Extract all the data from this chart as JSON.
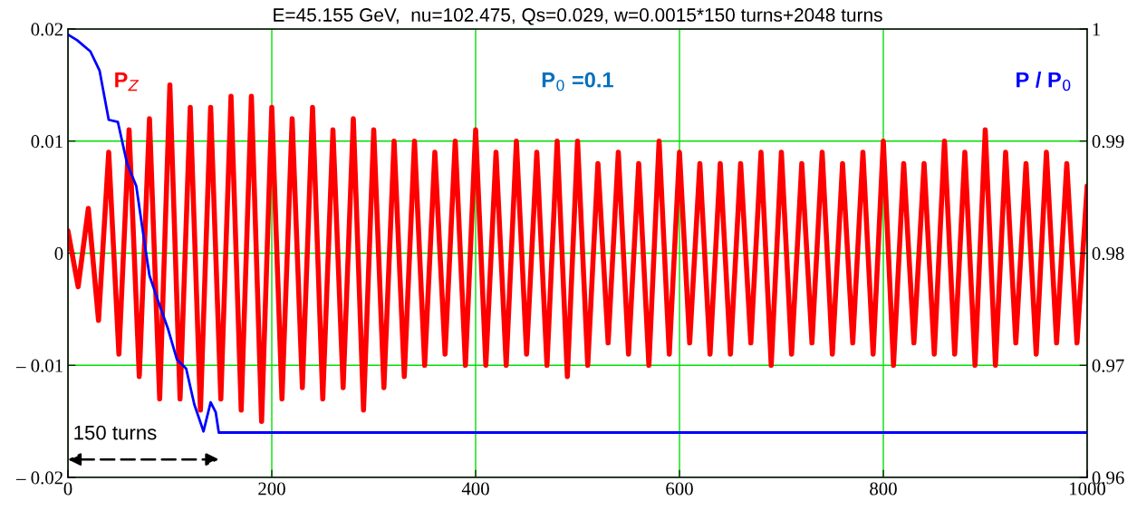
{
  "chart_data": {
    "type": "line",
    "title": "E=45.155 GeV,  nu=102.475, Qs=0.029, w=0.0015*150 turns+2048 turns",
    "x": [
      0,
      10,
      20,
      30,
      40,
      50,
      60,
      70,
      80,
      90,
      100,
      110,
      120,
      130,
      140,
      150,
      160,
      170,
      180,
      190,
      200,
      210,
      220,
      230,
      240,
      250,
      260,
      270,
      280,
      290,
      300,
      310,
      320,
      330,
      340,
      350,
      360,
      370,
      380,
      390,
      400,
      410,
      420,
      430,
      440,
      450,
      460,
      470,
      480,
      490,
      500,
      510,
      520,
      530,
      540,
      550,
      560,
      570,
      580,
      590,
      600,
      610,
      620,
      630,
      640,
      650,
      660,
      670,
      680,
      690,
      700,
      710,
      720,
      730,
      740,
      750,
      760,
      770,
      780,
      790,
      800,
      810,
      820,
      830,
      840,
      850,
      860,
      870,
      880,
      890,
      900,
      910,
      920,
      930,
      940,
      950,
      960,
      970,
      980,
      990,
      1000
    ],
    "series": [
      {
        "name": "P$_{Z}$",
        "color": "#ff0000",
        "values": [
          0.002,
          -0.003,
          0.004,
          -0.006,
          0.009,
          -0.009,
          0.011,
          -0.011,
          0.012,
          -0.013,
          0.015,
          -0.013,
          0.013,
          -0.014,
          0.013,
          -0.013,
          0.014,
          -0.014,
          0.014,
          -0.015,
          0.013,
          -0.013,
          0.012,
          -0.012,
          0.013,
          -0.013,
          0.011,
          -0.012,
          0.012,
          -0.014,
          0.011,
          -0.012,
          0.01,
          -0.011,
          0.01,
          -0.01,
          0.009,
          -0.009,
          0.01,
          -0.01,
          0.011,
          -0.01,
          0.009,
          -0.01,
          0.01,
          -0.009,
          0.009,
          -0.01,
          0.01,
          -0.011,
          0.01,
          -0.01,
          0.008,
          -0.008,
          0.009,
          -0.009,
          0.008,
          -0.01,
          0.01,
          -0.009,
          0.009,
          -0.008,
          0.008,
          -0.009,
          0.008,
          -0.009,
          0.008,
          -0.008,
          0.009,
          -0.01,
          0.009,
          -0.009,
          0.008,
          -0.008,
          0.009,
          -0.009,
          0.008,
          -0.008,
          0.009,
          -0.009,
          0.01,
          -0.01,
          0.008,
          -0.008,
          0.008,
          -0.009,
          0.01,
          -0.009,
          0.009,
          -0.01,
          0.011,
          -0.01,
          0.009,
          -0.008,
          0.008,
          -0.009,
          0.009,
          -0.008,
          0.008,
          -0.008,
          0.006
        ]
      },
      {
        "name": "P / P$_{0}$",
        "color": "#0000ff",
        "axis": "y2",
        "x": [
          0,
          9,
          22,
          31,
          40,
          49,
          58,
          67,
          76,
          80,
          89,
          98,
          107,
          116,
          124,
          133,
          140,
          145,
          148,
          1000
        ],
        "values": [
          0.9995,
          0.999,
          0.998,
          0.9963,
          0.9919,
          0.9917,
          0.988,
          0.986,
          0.9804,
          0.978,
          0.9756,
          0.9733,
          0.9705,
          0.9697,
          0.9665,
          0.9641,
          0.9667,
          0.9658,
          0.964,
          0.964
        ]
      }
    ],
    "xlim": [
      0,
      1000
    ],
    "xticks": [
      0,
      200,
      400,
      600,
      800,
      1000
    ],
    "ylim": [
      -0.02,
      0.02
    ],
    "yticks": [
      {
        "value": -0.02,
        "label": "– 0.02"
      },
      {
        "value": -0.01,
        "label": "– 0.01"
      },
      0,
      0.01,
      0.02
    ],
    "y2lim": [
      0.96,
      1.0
    ],
    "y2ticks": [
      0.96,
      0.97,
      0.98,
      0.99,
      {
        "value": 1.0,
        "label": "1"
      }
    ],
    "grid": true,
    "annotations": [
      "P$_{0}$ =0.1",
      "150 turns"
    ]
  }
}
